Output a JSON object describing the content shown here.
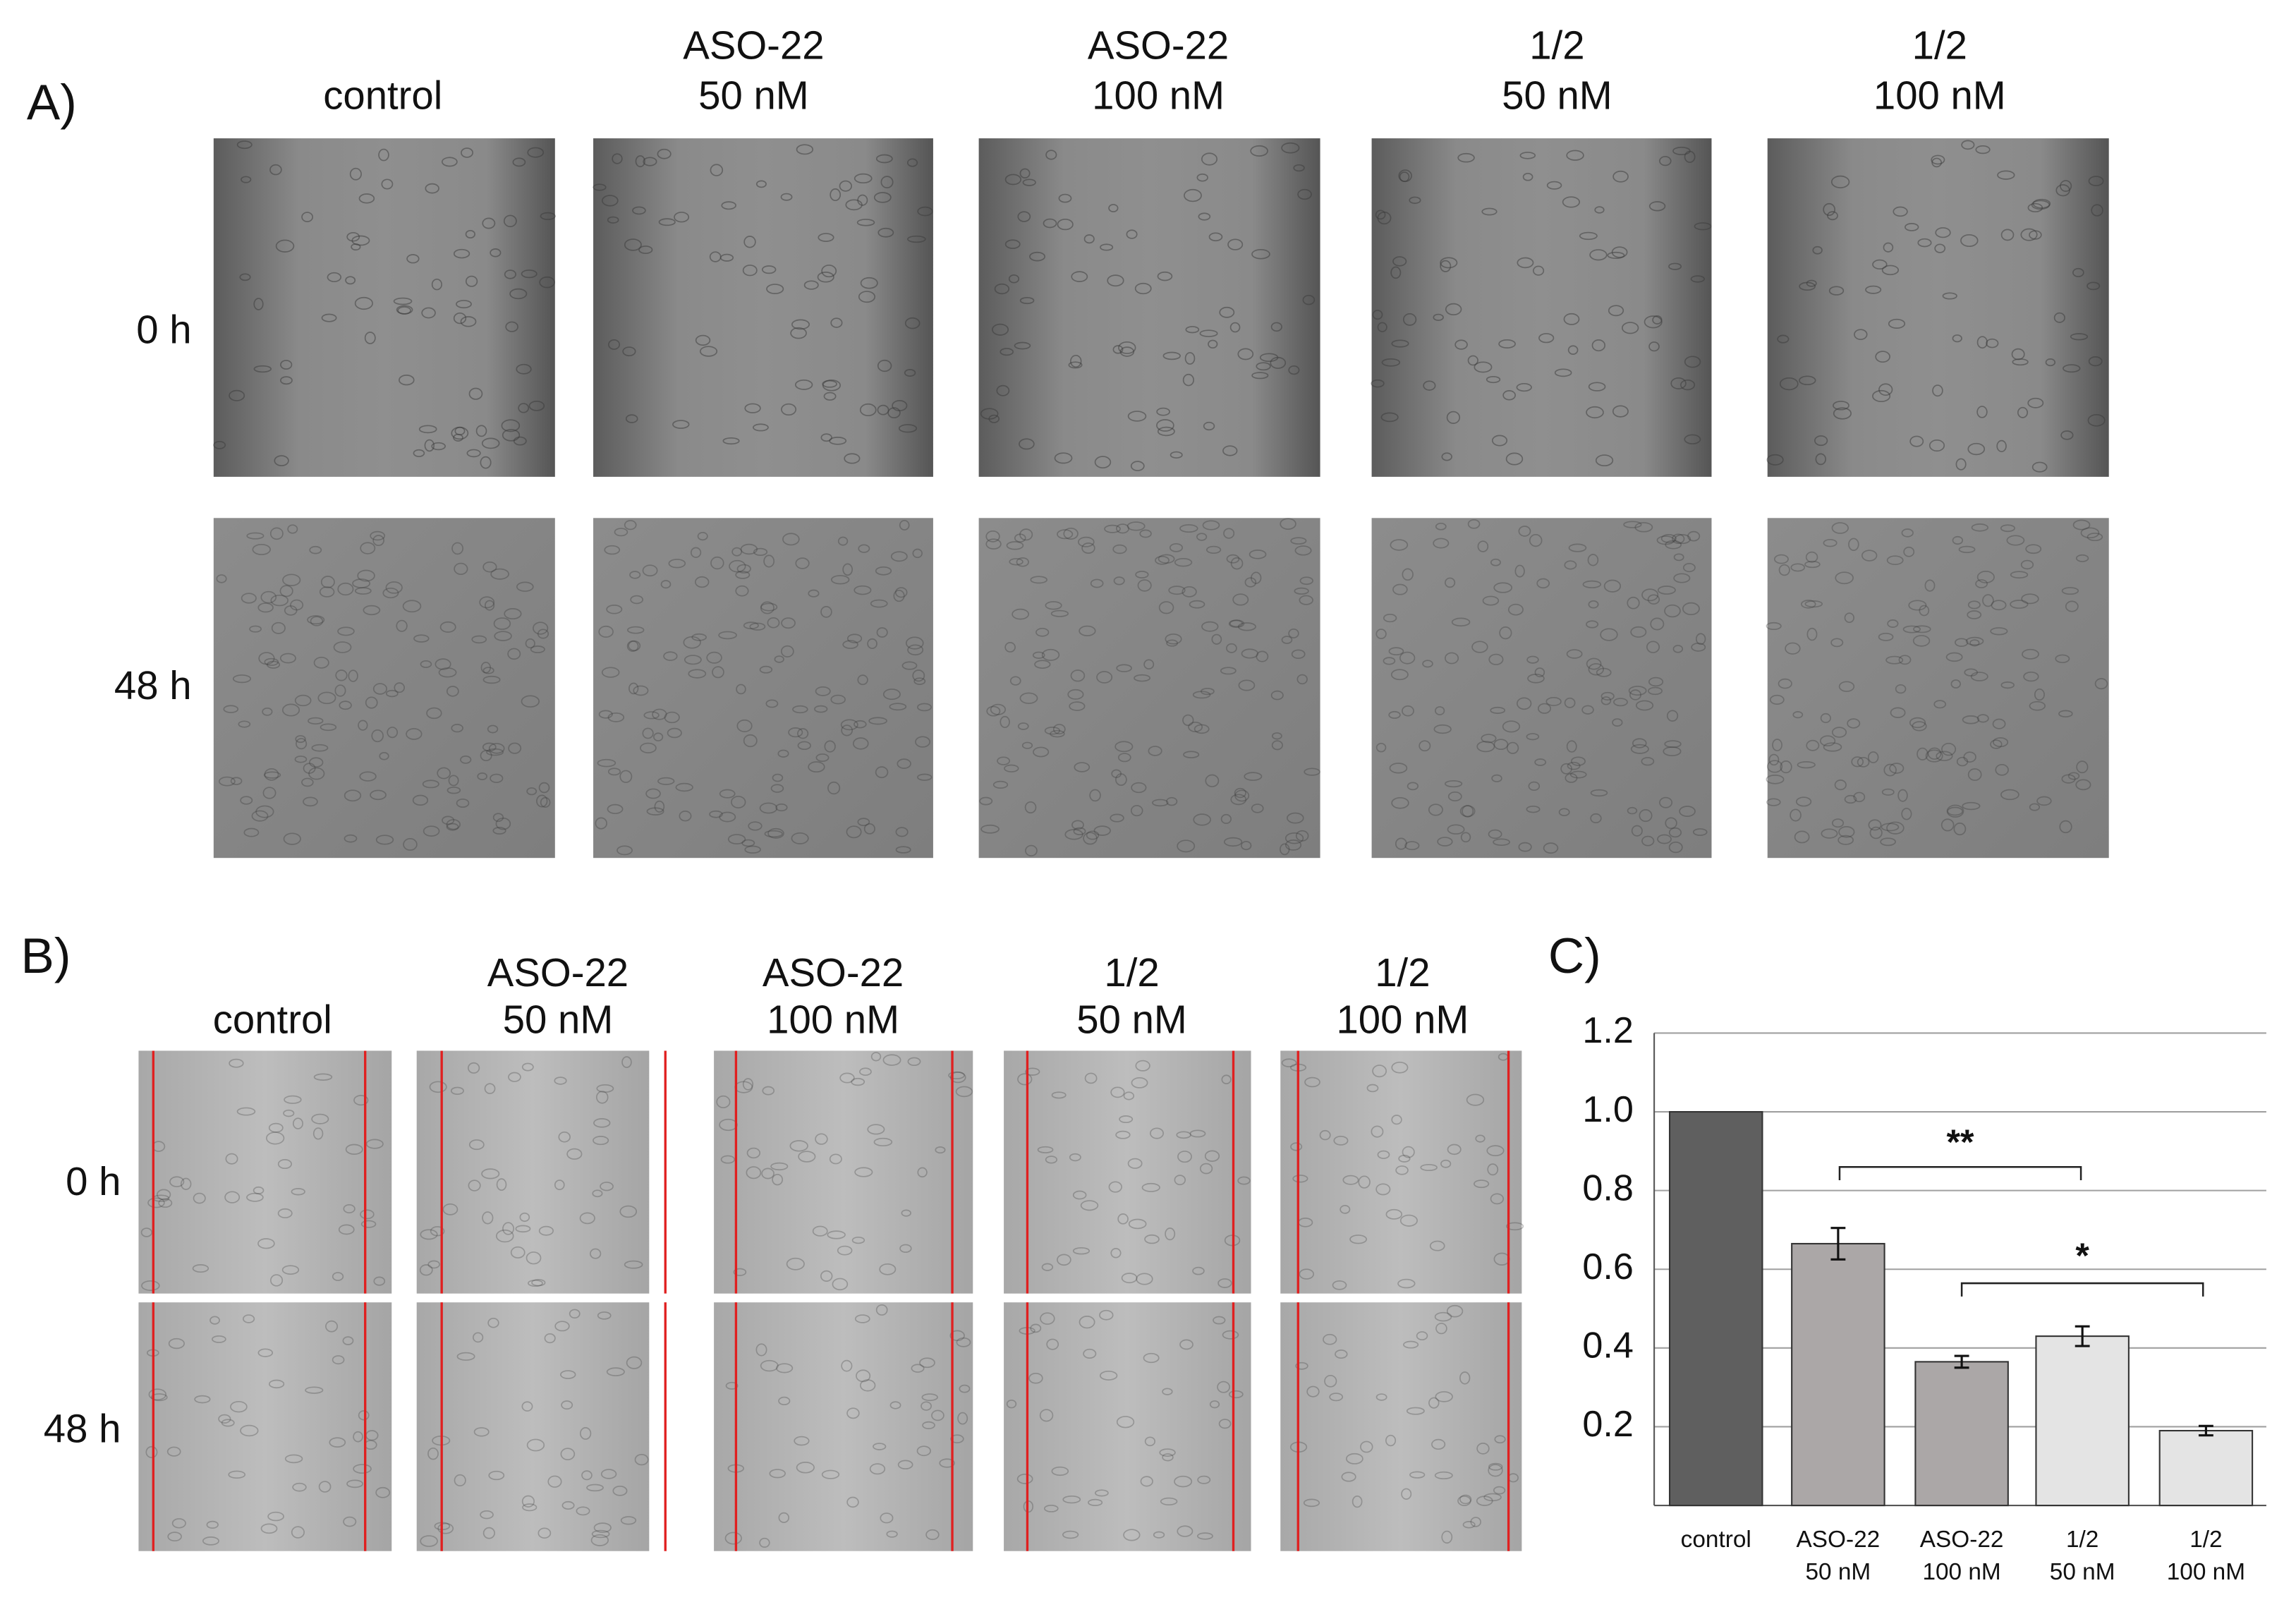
{
  "panel_a": {
    "label": "A)",
    "columns": [
      [
        "control"
      ],
      [
        "ASO-22",
        "50 nM"
      ],
      [
        "ASO-22",
        "100 nM"
      ],
      [
        "1/2",
        "50 nM"
      ],
      [
        "1/2",
        "100 nM"
      ]
    ],
    "rows": [
      "0 h",
      "48 h"
    ]
  },
  "panel_b": {
    "label": "B)",
    "columns": [
      [
        "control"
      ],
      [
        "ASO-22",
        "50 nM"
      ],
      [
        "ASO-22",
        "100 nM"
      ],
      [
        "1/2",
        "50 nM"
      ],
      [
        "1/2",
        "100 nM"
      ]
    ],
    "rows": [
      "0 h",
      "48 h"
    ]
  },
  "chart_data": {
    "type": "bar",
    "title": "C)",
    "categories": [
      [
        "control"
      ],
      [
        "ASO-22",
        "50 nM"
      ],
      [
        "ASO-22",
        "100 nM"
      ],
      [
        "1/2",
        "50 nM"
      ],
      [
        "1/2",
        "100 nM"
      ]
    ],
    "values": [
      1,
      0.665,
      0.365,
      0.43,
      0.19
    ],
    "errors": [
      null,
      0.04,
      0.015,
      0.025,
      0.012
    ],
    "colors": [
      "#5f5f5f",
      "#aba7a7",
      "#aba7a7",
      "#e4e4e4",
      "#e4e4e4"
    ],
    "ylim": [
      0,
      1.2
    ],
    "yticks": [
      0.2,
      0.4,
      0.6,
      0.8,
      {
        "value": 1,
        "label": "1.0"
      },
      1.2
    ],
    "grid": true,
    "annotations": [
      "**",
      "*"
    ]
  }
}
